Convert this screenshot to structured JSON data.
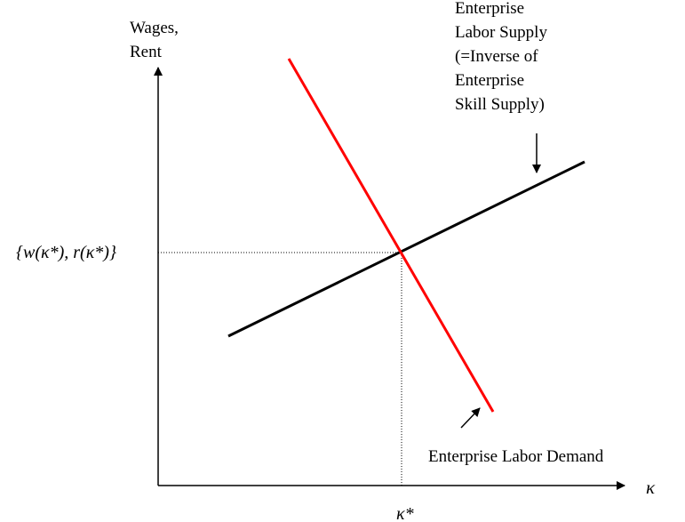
{
  "diagram": {
    "y_axis_label_lines": [
      "Wages,",
      "Rent"
    ],
    "x_axis_label": "κ",
    "equilibrium_y_label": "{w(κ*), r(κ*)}",
    "equilibrium_x_label": "κ*",
    "supply_label_lines": [
      "Enterprise",
      "Labor Supply",
      "(=Inverse of",
      "Enterprise",
      "Skill Supply)"
    ],
    "demand_label": "Enterprise Labor Demand",
    "colors": {
      "supply_line": "#000000",
      "demand_line": "#ff0000",
      "axes": "#000000",
      "guides": "#000000"
    }
  }
}
